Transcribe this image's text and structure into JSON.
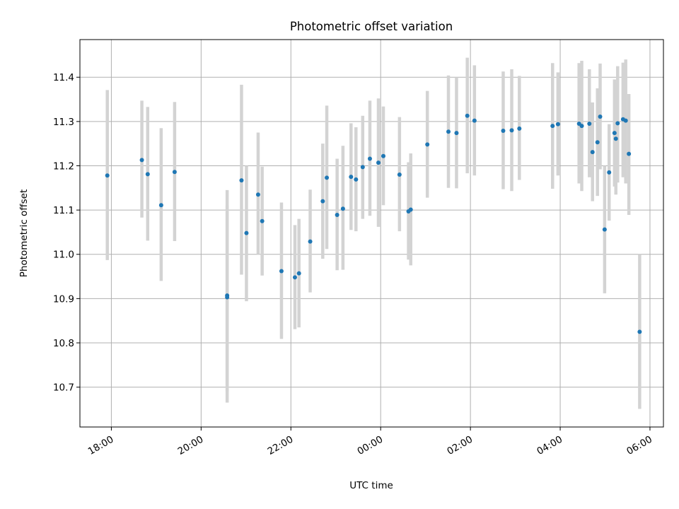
{
  "chart_data": {
    "type": "scatter",
    "title": "Photometric offset variation",
    "xlabel": "UTC time",
    "ylabel": "Photometric offset",
    "x_unit": "hours relative to 00:00 UTC",
    "xlim": [
      -6.7,
      6.3
    ],
    "ylim": [
      10.61,
      11.485
    ],
    "x_ticks": [
      {
        "value": -6,
        "label": "18:00"
      },
      {
        "value": -4,
        "label": "20:00"
      },
      {
        "value": -2,
        "label": "22:00"
      },
      {
        "value": 0,
        "label": "00:00"
      },
      {
        "value": 2,
        "label": "02:00"
      },
      {
        "value": 4,
        "label": "04:00"
      },
      {
        "value": 6,
        "label": "06:00"
      }
    ],
    "y_ticks": [
      {
        "value": 10.7,
        "label": "10.7"
      },
      {
        "value": 10.8,
        "label": "10.8"
      },
      {
        "value": 10.9,
        "label": "10.9"
      },
      {
        "value": 11.0,
        "label": "11.0"
      },
      {
        "value": 11.1,
        "label": "11.1"
      },
      {
        "value": 11.2,
        "label": "11.2"
      },
      {
        "value": 11.3,
        "label": "11.3"
      },
      {
        "value": 11.4,
        "label": "11.4"
      }
    ],
    "grid": true,
    "colors": {
      "point": "#1f77b4",
      "errorbar": "#d3d3d3",
      "grid": "#b0b0b0"
    },
    "points": [
      {
        "x": -6.09,
        "y": 11.178,
        "lo": 10.987,
        "hi": 11.371
      },
      {
        "x": -5.32,
        "y": 11.213,
        "lo": 11.083,
        "hi": 11.347
      },
      {
        "x": -5.19,
        "y": 11.181,
        "lo": 11.031,
        "hi": 11.333
      },
      {
        "x": -4.89,
        "y": 11.111,
        "lo": 10.94,
        "hi": 11.285
      },
      {
        "x": -4.59,
        "y": 11.186,
        "lo": 11.03,
        "hi": 11.344
      },
      {
        "x": -3.42,
        "y": 10.907,
        "lo": 10.665,
        "hi": 11.145
      },
      {
        "x": -3.42,
        "y": 10.903,
        "lo": 10.69,
        "hi": 11.11
      },
      {
        "x": -3.1,
        "y": 11.167,
        "lo": 10.954,
        "hi": 11.383
      },
      {
        "x": -2.99,
        "y": 11.048,
        "lo": 10.894,
        "hi": 11.2
      },
      {
        "x": -2.73,
        "y": 11.135,
        "lo": 11.0,
        "hi": 11.275
      },
      {
        "x": -2.64,
        "y": 11.075,
        "lo": 10.952,
        "hi": 11.198
      },
      {
        "x": -2.21,
        "y": 10.962,
        "lo": 10.809,
        "hi": 11.117
      },
      {
        "x": -1.91,
        "y": 10.948,
        "lo": 10.831,
        "hi": 11.066
      },
      {
        "x": -1.82,
        "y": 10.957,
        "lo": 10.835,
        "hi": 11.08
      },
      {
        "x": -1.57,
        "y": 11.029,
        "lo": 10.914,
        "hi": 11.146
      },
      {
        "x": -1.29,
        "y": 11.12,
        "lo": 10.99,
        "hi": 11.25
      },
      {
        "x": -1.2,
        "y": 11.173,
        "lo": 11.012,
        "hi": 11.336
      },
      {
        "x": -0.97,
        "y": 11.089,
        "lo": 10.964,
        "hi": 11.216
      },
      {
        "x": -0.84,
        "y": 11.103,
        "lo": 10.965,
        "hi": 11.245
      },
      {
        "x": -0.66,
        "y": 11.175,
        "lo": 11.055,
        "hi": 11.296
      },
      {
        "x": -0.55,
        "y": 11.169,
        "lo": 11.052,
        "hi": 11.287
      },
      {
        "x": -0.4,
        "y": 11.197,
        "lo": 11.08,
        "hi": 11.313
      },
      {
        "x": -0.24,
        "y": 11.216,
        "lo": 11.087,
        "hi": 11.347
      },
      {
        "x": -0.05,
        "y": 11.207,
        "lo": 11.062,
        "hi": 11.352
      },
      {
        "x": 0.06,
        "y": 11.222,
        "lo": 11.111,
        "hi": 11.334
      },
      {
        "x": 0.42,
        "y": 11.18,
        "lo": 11.052,
        "hi": 11.31
      },
      {
        "x": 0.62,
        "y": 11.097,
        "lo": 10.988,
        "hi": 11.208
      },
      {
        "x": 0.67,
        "y": 11.101,
        "lo": 10.975,
        "hi": 11.228
      },
      {
        "x": 1.04,
        "y": 11.248,
        "lo": 11.128,
        "hi": 11.369
      },
      {
        "x": 1.51,
        "y": 11.277,
        "lo": 11.15,
        "hi": 11.404
      },
      {
        "x": 1.69,
        "y": 11.274,
        "lo": 11.149,
        "hi": 11.4
      },
      {
        "x": 1.93,
        "y": 11.313,
        "lo": 11.183,
        "hi": 11.444
      },
      {
        "x": 2.09,
        "y": 11.302,
        "lo": 11.178,
        "hi": 11.427
      },
      {
        "x": 2.73,
        "y": 11.279,
        "lo": 11.147,
        "hi": 11.413
      },
      {
        "x": 2.92,
        "y": 11.28,
        "lo": 11.143,
        "hi": 11.418
      },
      {
        "x": 3.09,
        "y": 11.284,
        "lo": 11.168,
        "hi": 11.403
      },
      {
        "x": 3.83,
        "y": 11.29,
        "lo": 11.148,
        "hi": 11.432
      },
      {
        "x": 3.95,
        "y": 11.294,
        "lo": 11.178,
        "hi": 11.411
      },
      {
        "x": 4.42,
        "y": 11.295,
        "lo": 11.16,
        "hi": 11.432
      },
      {
        "x": 4.48,
        "y": 11.29,
        "lo": 11.143,
        "hi": 11.437
      },
      {
        "x": 4.65,
        "y": 11.295,
        "lo": 11.174,
        "hi": 11.418
      },
      {
        "x": 4.72,
        "y": 11.231,
        "lo": 11.12,
        "hi": 11.343
      },
      {
        "x": 4.83,
        "y": 11.253,
        "lo": 11.132,
        "hi": 11.375
      },
      {
        "x": 4.89,
        "y": 11.311,
        "lo": 11.192,
        "hi": 11.431
      },
      {
        "x": 4.99,
        "y": 11.056,
        "lo": 10.912,
        "hi": 11.2
      },
      {
        "x": 5.09,
        "y": 11.185,
        "lo": 11.076,
        "hi": 11.294
      },
      {
        "x": 5.21,
        "y": 11.274,
        "lo": 11.153,
        "hi": 11.395
      },
      {
        "x": 5.24,
        "y": 11.261,
        "lo": 11.135,
        "hi": 11.387
      },
      {
        "x": 5.28,
        "y": 11.296,
        "lo": 11.162,
        "hi": 11.425
      },
      {
        "x": 5.4,
        "y": 11.305,
        "lo": 11.174,
        "hi": 11.433
      },
      {
        "x": 5.46,
        "y": 11.302,
        "lo": 11.16,
        "hi": 11.44
      },
      {
        "x": 5.53,
        "y": 11.227,
        "lo": 11.089,
        "hi": 11.362
      },
      {
        "x": 5.77,
        "y": 10.825,
        "lo": 10.651,
        "hi": 11.0
      }
    ]
  }
}
